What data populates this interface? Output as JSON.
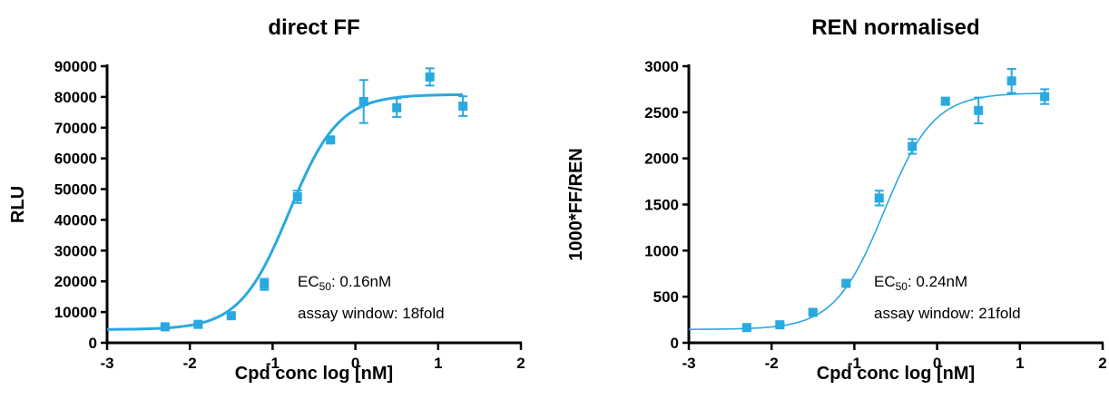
{
  "chart_data": [
    {
      "type": "scatter",
      "title": "direct FF",
      "xlabel": "Cpd conc log [nM]",
      "ylabel": "RLU",
      "xlim": [
        -3,
        2
      ],
      "ylim": [
        0,
        90000
      ],
      "x_ticks": [
        -3,
        -2,
        -1,
        0,
        1,
        2
      ],
      "y_ticks": [
        0,
        10000,
        20000,
        30000,
        40000,
        50000,
        60000,
        70000,
        80000,
        90000
      ],
      "color": "#29a9e0",
      "series": [
        {
          "x": [
            -2.3,
            -1.9,
            -1.5,
            -1.1,
            -0.7,
            -0.3,
            0.1,
            0.5,
            0.9,
            1.3
          ],
          "y": [
            5200,
            6000,
            8800,
            19000,
            47500,
            66000,
            78500,
            76500,
            86500,
            77000
          ],
          "yerr": [
            600,
            600,
            600,
            1800,
            2000,
            900,
            7000,
            3000,
            2800,
            3200
          ]
        }
      ],
      "fit": {
        "bottom": 4300,
        "top": 80800,
        "log_ec50": -0.8,
        "hill": 1.45
      },
      "annotations": {
        "ec50_prefix": "EC",
        "ec50_sub": "50",
        "ec50_value": ": 0.16nM",
        "window": "assay window: 18fold"
      }
    },
    {
      "type": "scatter",
      "title": "REN normalised",
      "xlabel": "Cpd conc log [nM]",
      "ylabel": "1000*FF/REN",
      "xlim": [
        -3,
        2
      ],
      "ylim": [
        0,
        3000
      ],
      "x_ticks": [
        -3,
        -2,
        -1,
        0,
        1,
        2
      ],
      "y_ticks": [
        0,
        500,
        1000,
        1500,
        2000,
        2500,
        3000
      ],
      "color": "#29a9e0",
      "series": [
        {
          "x": [
            -2.3,
            -1.9,
            -1.5,
            -1.1,
            -0.7,
            -0.3,
            0.1,
            0.5,
            0.9,
            1.3
          ],
          "y": [
            165,
            195,
            330,
            645,
            1570,
            2130,
            2620,
            2520,
            2840,
            2670
          ],
          "yerr": [
            20,
            20,
            20,
            30,
            80,
            80,
            30,
            140,
            130,
            80
          ]
        }
      ],
      "fit": {
        "bottom": 145,
        "top": 2710,
        "log_ec50": -0.64,
        "hill": 1.45
      },
      "annotations": {
        "ec50_prefix": "EC",
        "ec50_sub": "50",
        "ec50_value": ": 0.24nM",
        "window": "assay window: 21fold"
      }
    }
  ]
}
